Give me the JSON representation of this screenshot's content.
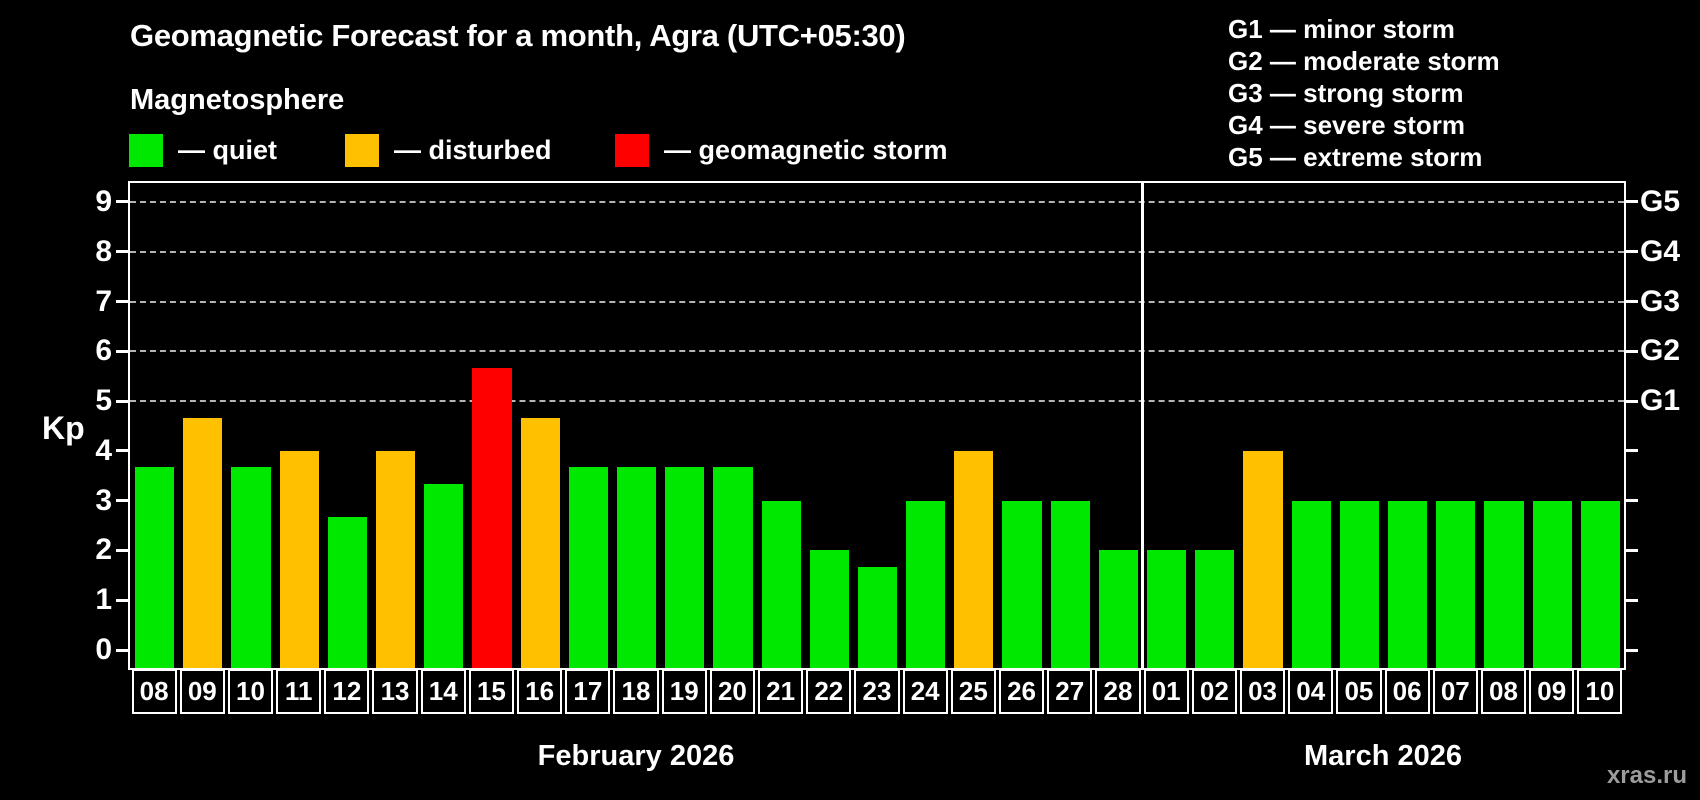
{
  "header": {
    "title": "Geomagnetic Forecast for a month, Agra (UTC+05:30)",
    "subtitle": "Magnetosphere"
  },
  "legend": {
    "items": [
      {
        "status": "quiet",
        "label": "— quiet"
      },
      {
        "status": "disturbed",
        "label": "— disturbed"
      },
      {
        "status": "storm",
        "label": "— geomagnetic storm"
      }
    ]
  },
  "storm_scale": {
    "items": [
      {
        "label": "G1 — minor storm"
      },
      {
        "label": "G2 — moderate storm"
      },
      {
        "label": "G3 — strong storm"
      },
      {
        "label": "G4 — severe storm"
      },
      {
        "label": "G5 — extreme storm"
      }
    ]
  },
  "axis": {
    "left_label": "Kp"
  },
  "colors": {
    "quiet": "#00e800",
    "disturbed": "#ffc000",
    "storm": "#ff0000",
    "grid": "#b4b4b4",
    "axis": "#ffffff"
  },
  "watermark": "xras.ru",
  "chart_data": {
    "type": "bar",
    "title": "Geomagnetic Forecast for a month, Agra (UTC+05:30)",
    "subtitle": "Magnetosphere",
    "xlabel": "",
    "ylabel": "Kp",
    "ylim": [
      0,
      9.4
    ],
    "y_ticks": [
      0,
      1,
      2,
      3,
      4,
      5,
      6,
      7,
      8,
      9
    ],
    "gridlines_at": [
      5,
      6,
      7,
      8,
      9
    ],
    "legend_position": "top-left",
    "categories": [
      "08",
      "09",
      "10",
      "11",
      "12",
      "13",
      "14",
      "15",
      "16",
      "17",
      "18",
      "19",
      "20",
      "21",
      "22",
      "23",
      "24",
      "25",
      "26",
      "27",
      "28",
      "01",
      "02",
      "03",
      "04",
      "05",
      "06",
      "07",
      "08",
      "09",
      "10"
    ],
    "values": [
      3.67,
      4.67,
      3.67,
      4,
      2.67,
      4,
      3.33,
      5.67,
      4.67,
      3.67,
      3.67,
      3.67,
      3.67,
      3,
      2,
      1.67,
      3,
      4,
      3,
      3,
      2,
      2,
      2,
      4,
      3,
      3,
      3,
      3,
      3,
      3,
      3
    ],
    "statuses": [
      "quiet",
      "disturbed",
      "quiet",
      "disturbed",
      "quiet",
      "disturbed",
      "quiet",
      "storm",
      "disturbed",
      "quiet",
      "quiet",
      "quiet",
      "quiet",
      "quiet",
      "quiet",
      "quiet",
      "quiet",
      "disturbed",
      "quiet",
      "quiet",
      "quiet",
      "quiet",
      "quiet",
      "disturbed",
      "quiet",
      "quiet",
      "quiet",
      "quiet",
      "quiet",
      "quiet",
      "quiet"
    ],
    "months": [
      {
        "label": "February 2026",
        "days": 21
      },
      {
        "label": "March 2026",
        "days": 10
      }
    ],
    "right_axis_labels": [
      {
        "label": "G1",
        "kp": 5
      },
      {
        "label": "G2",
        "kp": 6
      },
      {
        "label": "G3",
        "kp": 7
      },
      {
        "label": "G4",
        "kp": 8
      },
      {
        "label": "G5",
        "kp": 9
      }
    ]
  }
}
